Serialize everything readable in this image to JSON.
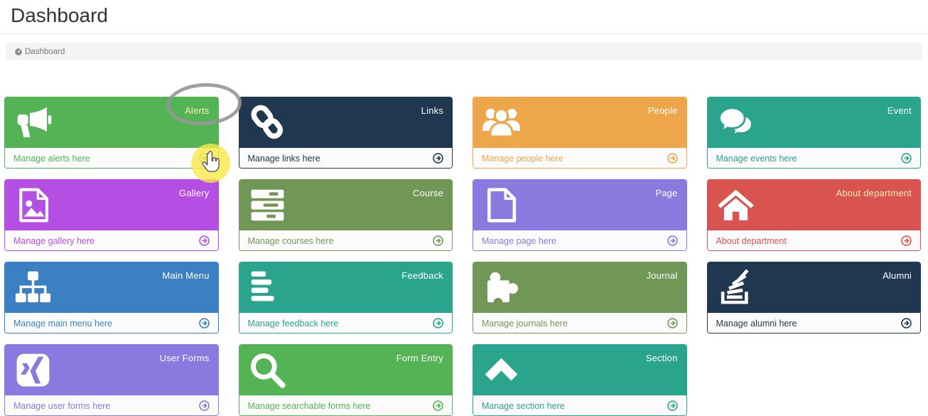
{
  "page": {
    "title": "Dashboard"
  },
  "breadcrumb": {
    "items": [
      {
        "label": "Dashboard",
        "icon": "dashboard-icon"
      }
    ]
  },
  "tiles": [
    {
      "name": "alerts",
      "label": "Alerts",
      "footer": "Manage alerts here",
      "color": "#54b455",
      "label_color": "#f6efae",
      "icon": "bullhorn-icon"
    },
    {
      "name": "links",
      "label": "Links",
      "footer": "Manage links here",
      "color": "#20384f",
      "icon": "chain-icon"
    },
    {
      "name": "people",
      "label": "People",
      "footer": "Manage people here",
      "color": "#eda74a",
      "icon": "users-icon"
    },
    {
      "name": "event",
      "label": "Event",
      "footer": "Manage events here",
      "color": "#2aa48c",
      "icon": "comments-icon"
    },
    {
      "name": "gallery",
      "label": "Gallery",
      "footer": "Manage gallery here",
      "color": "#b54fe4",
      "icon": "image-icon"
    },
    {
      "name": "course",
      "label": "Course",
      "footer": "Manage courses here",
      "color": "#719757",
      "icon": "servers-icon"
    },
    {
      "name": "page",
      "label": "Page",
      "footer": "Manage page here",
      "color": "#8a79df",
      "icon": "file-icon"
    },
    {
      "name": "about-department",
      "label": "About department",
      "footer": "About department",
      "color": "#d95450",
      "label_color": "#f6efae",
      "icon": "home-icon"
    },
    {
      "name": "main-menu",
      "label": "Main Menu",
      "footer": "Manage main menu here",
      "color": "#3a80c2",
      "icon": "sitemap-icon"
    },
    {
      "name": "feedback",
      "label": "Feedback",
      "footer": "Manage feedback here",
      "color": "#2aa48c",
      "icon": "lines-icon"
    },
    {
      "name": "journal",
      "label": "Journal",
      "footer": "Manage journals here",
      "color": "#719757",
      "icon": "puzzle-icon"
    },
    {
      "name": "alumni",
      "label": "Alumni",
      "footer": "Manage alumni here",
      "color": "#20384f",
      "icon": "stack-icon"
    },
    {
      "name": "user-forms",
      "label": "User Forms",
      "footer": "Manage user forms here",
      "color": "#8a79df",
      "icon": "xing-icon"
    },
    {
      "name": "form-entry",
      "label": "Form Entry",
      "footer": "Manage searchable forms here",
      "color": "#54b455",
      "icon": "search-icon"
    },
    {
      "name": "section",
      "label": "Section",
      "footer": "Manage section here",
      "color": "#2aa48c",
      "icon": "chevron-up-icon"
    }
  ],
  "annotations": {
    "ellipse_color": "#969696",
    "highlight_color": "#f7e849",
    "cursor": "hand-pointer-icon"
  }
}
